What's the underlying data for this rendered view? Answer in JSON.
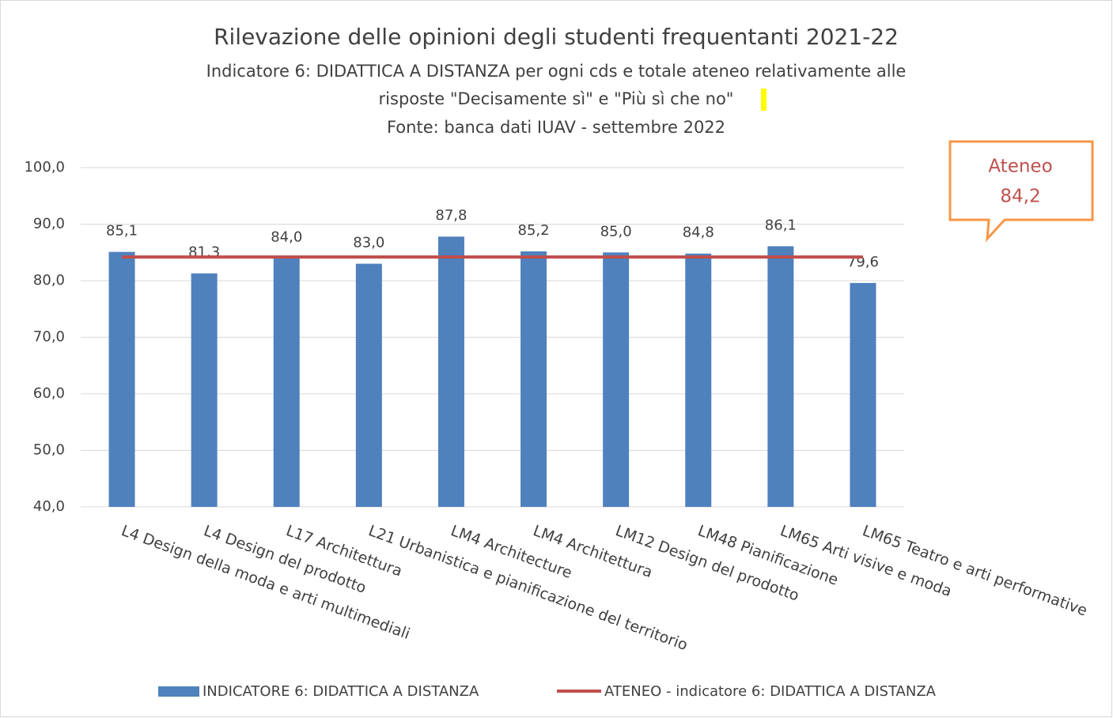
{
  "chart_data": {
    "type": "bar",
    "title": "Rilevazione delle opinioni degli studenti frequentanti 2021-22",
    "subtitle": [
      "Indicatore 6: DIDATTICA A DISTANZA per ogni cds e totale ateneo relativamente alle",
      "risposte \"Decisamente sì\" e \"Più sì che no\"",
      "Fonte: banca dati IUAV - settembre 2022"
    ],
    "categories": [
      "L4 Design della moda e arti multimediali",
      "L4 Design del prodotto",
      "L17 Architettura",
      "L21 Urbanistica e pianificazione del territorio",
      "LM4 Architecture",
      "LM4 Architettura",
      "LM12 Design del prodotto",
      "LM48 Pianificazione",
      "LM65 Arti visive e moda",
      "LM65 Teatro e arti performative"
    ],
    "series": [
      {
        "name": "INDICATORE 6: DIDATTICA A DISTANZA",
        "type": "bar",
        "color": "#4f81bd",
        "values": [
          85.1,
          81.3,
          84.0,
          83.0,
          87.8,
          85.2,
          85.0,
          84.8,
          86.1,
          79.6
        ],
        "value_labels": [
          "85,1",
          "81,3",
          "84,0",
          "83,0",
          "87,8",
          "85,2",
          "85,0",
          "84,8",
          "86,1",
          "79,6"
        ]
      },
      {
        "name": "ATENEO - indicatore 6: DIDATTICA A DISTANZA",
        "type": "line",
        "color": "#c0504d",
        "values": [
          84.2,
          84.2,
          84.2,
          84.2,
          84.2,
          84.2,
          84.2,
          84.2,
          84.2,
          84.2
        ]
      }
    ],
    "annotation": [
      "Ateneo",
      "84,2"
    ],
    "ylim": [
      40,
      100
    ],
    "yticks": [
      {
        "value": 40,
        "label": "40,0"
      },
      {
        "value": 50,
        "label": "50,0"
      },
      {
        "value": 60,
        "label": "60,0"
      },
      {
        "value": 70,
        "label": "70,0"
      },
      {
        "value": 80,
        "label": "80,0"
      },
      {
        "value": 90,
        "label": "90,0"
      },
      {
        "value": 100,
        "label": "100,0"
      }
    ],
    "grid": true,
    "legend": "bottom"
  }
}
